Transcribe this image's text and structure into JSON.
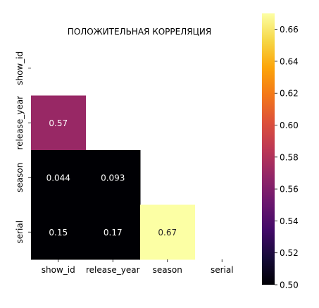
{
  "chart_data": {
    "type": "heatmap",
    "title": "ПОЛОЖИТЕЛЬНАЯ КОРРЕЛЯЦИЯ",
    "xlabel": "",
    "ylabel": "",
    "mask": "upper-triangle-including-diagonal",
    "x_labels": [
      "show_id",
      "release_year",
      "season",
      "serial"
    ],
    "y_labels": [
      "show_id",
      "release_year",
      "season",
      "serial"
    ],
    "cells": [
      {
        "row": 1,
        "col": 0,
        "value": 0.57,
        "label": "0.57"
      },
      {
        "row": 2,
        "col": 0,
        "value": 0.044,
        "label": "0.044"
      },
      {
        "row": 2,
        "col": 1,
        "value": 0.093,
        "label": "0.093"
      },
      {
        "row": 3,
        "col": 0,
        "value": 0.15,
        "label": "0.15"
      },
      {
        "row": 3,
        "col": 1,
        "value": 0.17,
        "label": "0.17"
      },
      {
        "row": 3,
        "col": 2,
        "value": 0.67,
        "label": "0.67"
      }
    ],
    "colorbar": {
      "colormap": "inferno",
      "vmin": 0.5,
      "vmax": 0.67,
      "ticks": [
        "0.50",
        "0.52",
        "0.54",
        "0.56",
        "0.58",
        "0.60",
        "0.62",
        "0.64",
        "0.66"
      ]
    }
  }
}
